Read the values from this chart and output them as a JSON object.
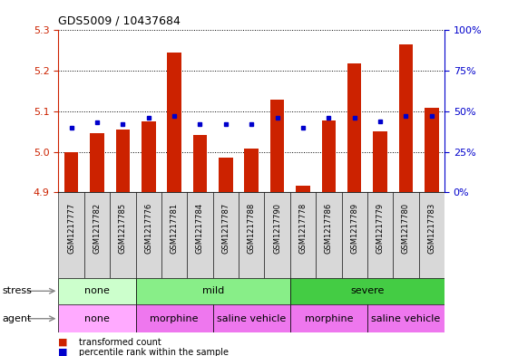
{
  "title": "GDS5009 / 10437684",
  "samples": [
    "GSM1217777",
    "GSM1217782",
    "GSM1217785",
    "GSM1217776",
    "GSM1217781",
    "GSM1217784",
    "GSM1217787",
    "GSM1217788",
    "GSM1217790",
    "GSM1217778",
    "GSM1217786",
    "GSM1217789",
    "GSM1217779",
    "GSM1217780",
    "GSM1217783"
  ],
  "transformed_count": [
    5.0,
    5.045,
    5.055,
    5.075,
    5.245,
    5.042,
    4.986,
    5.008,
    5.128,
    4.916,
    5.077,
    5.218,
    5.05,
    5.265,
    5.108
  ],
  "percentile_rank": [
    40,
    43,
    42,
    46,
    47,
    42,
    42,
    42,
    46,
    40,
    46,
    46,
    44,
    47,
    47
  ],
  "ylim_left": [
    4.9,
    5.3
  ],
  "ylim_right": [
    0,
    100
  ],
  "yticks_left": [
    4.9,
    5.0,
    5.1,
    5.2,
    5.3
  ],
  "yticks_right": [
    0,
    25,
    50,
    75,
    100
  ],
  "bar_color": "#cc2200",
  "dot_color": "#0000cc",
  "baseline": 4.9,
  "stress_groups": [
    {
      "label": "none",
      "start": 0,
      "end": 3,
      "color": "#ccffcc"
    },
    {
      "label": "mild",
      "start": 3,
      "end": 9,
      "color": "#88ee88"
    },
    {
      "label": "severe",
      "start": 9,
      "end": 15,
      "color": "#44cc44"
    }
  ],
  "agent_groups": [
    {
      "label": "none",
      "start": 0,
      "end": 3,
      "color": "#ffccff"
    },
    {
      "label": "morphine",
      "start": 3,
      "end": 6,
      "color": "#ee88ee"
    },
    {
      "label": "saline vehicle",
      "start": 6,
      "end": 9,
      "color": "#ee88ee"
    },
    {
      "label": "morphine",
      "start": 9,
      "end": 12,
      "color": "#ee88ee"
    },
    {
      "label": "saline vehicle",
      "start": 12,
      "end": 15,
      "color": "#ee88ee"
    }
  ],
  "stress_label": "stress",
  "agent_label": "agent",
  "left_axis_color": "#cc2200",
  "right_axis_color": "#0000cc",
  "legend_red_label": "transformed count",
  "legend_blue_label": "percentile rank within the sample",
  "xtick_bg_color": "#d8d8d8",
  "agent_none_color": "#ffaaff",
  "agent_color": "#ee77ee"
}
